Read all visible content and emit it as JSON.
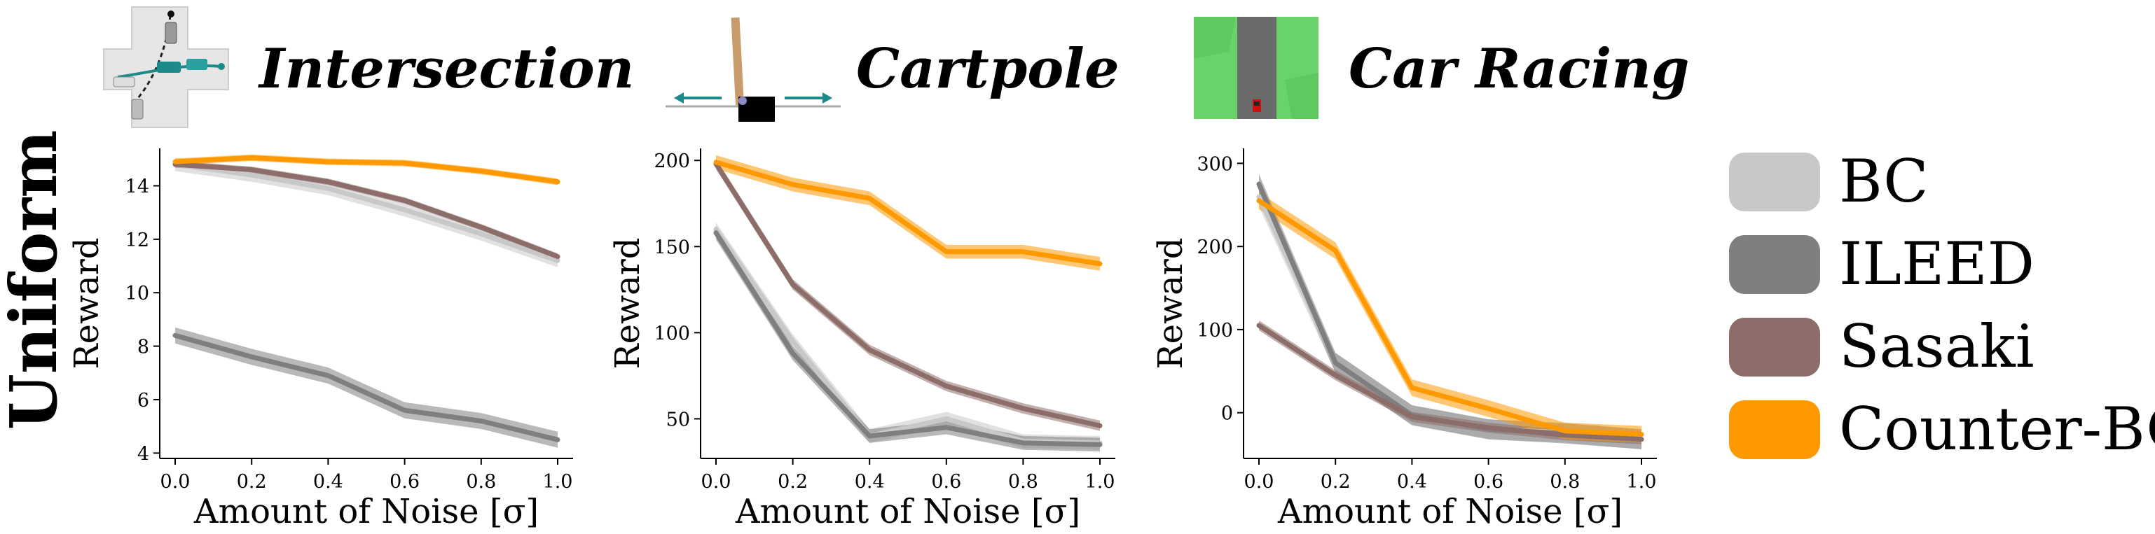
{
  "figure": {
    "row_label": "Uniform"
  },
  "colors": {
    "BC": "#c8c8c8",
    "ILEED": "#7f7f7f",
    "Sasaki": "#8c6d6a",
    "Counter-BC": "#ff9900"
  },
  "legend": [
    "BC",
    "ILEED",
    "Sasaki",
    "Counter-BC"
  ],
  "chart_data": [
    {
      "type": "line",
      "title": "Intersection",
      "icon": "intersection-scene-icon",
      "xlabel": "Amount of Noise [σ]",
      "ylabel": "Reward",
      "x": [
        0.0,
        0.2,
        0.4,
        0.6,
        0.8,
        1.0
      ],
      "xticks": [
        "0.0",
        "0.2",
        "0.4",
        "0.6",
        "0.8",
        "1.0"
      ],
      "yticks": [
        4,
        6,
        8,
        10,
        12,
        14
      ],
      "ylim": [
        3.8,
        15.4
      ],
      "series": [
        {
          "name": "BC",
          "values": [
            14.8,
            14.4,
            13.9,
            13.1,
            12.2,
            11.2
          ],
          "band": 0.25
        },
        {
          "name": "ILEED",
          "values": [
            8.4,
            7.6,
            6.9,
            5.6,
            5.2,
            4.5
          ],
          "band": 0.3
        },
        {
          "name": "Sasaki",
          "values": [
            14.8,
            14.6,
            14.15,
            13.45,
            12.45,
            11.35
          ],
          "band": 0.12
        },
        {
          "name": "Counter-BC",
          "values": [
            14.9,
            15.05,
            14.9,
            14.85,
            14.55,
            14.15
          ],
          "band": 0.12
        }
      ]
    },
    {
      "type": "line",
      "title": "Cartpole",
      "icon": "cartpole-scene-icon",
      "xlabel": "Amount of Noise [σ]",
      "ylabel": "Reward",
      "x": [
        0.0,
        0.2,
        0.4,
        0.6,
        0.8,
        1.0
      ],
      "xticks": [
        "0.0",
        "0.2",
        "0.4",
        "0.6",
        "0.8",
        "1.0"
      ],
      "yticks": [
        50,
        100,
        150,
        200
      ],
      "ylim": [
        27,
        207
      ],
      "series": [
        {
          "name": "BC",
          "values": [
            160,
            95,
            40,
            50,
            37,
            36
          ],
          "band": 4
        },
        {
          "name": "ILEED",
          "values": [
            158,
            88,
            40,
            45,
            36,
            35
          ],
          "band": 4
        },
        {
          "name": "Sasaki",
          "values": [
            198,
            128,
            90,
            69,
            56,
            46
          ],
          "band": 3
        },
        {
          "name": "Counter-BC",
          "values": [
            199,
            186,
            178,
            147,
            147,
            140
          ],
          "band": 4
        }
      ]
    },
    {
      "type": "line",
      "title": "Car Racing",
      "icon": "car-racing-scene-icon",
      "xlabel": "Amount of Noise [σ]",
      "ylabel": "Reward",
      "x": [
        0.0,
        0.2,
        0.4,
        0.6,
        0.8,
        1.0
      ],
      "xticks": [
        "0.0",
        "0.2",
        "0.4",
        "0.6",
        "0.8",
        "1.0"
      ],
      "yticks": [
        0,
        100,
        200,
        300
      ],
      "ylim": [
        -55,
        318
      ],
      "series": [
        {
          "name": "BC",
          "values": [
            260,
            60,
            -3,
            -20,
            -24,
            -32
          ],
          "band": 12
        },
        {
          "name": "ILEED",
          "values": [
            275,
            60,
            -3,
            -20,
            -25,
            -32
          ],
          "band": 12
        },
        {
          "name": "Sasaki",
          "values": [
            105,
            45,
            -5,
            -18,
            -27,
            -32
          ],
          "band": 6
        },
        {
          "name": "Counter-BC",
          "values": [
            255,
            195,
            30,
            5,
            -22,
            -26
          ],
          "band": 10
        }
      ]
    }
  ]
}
